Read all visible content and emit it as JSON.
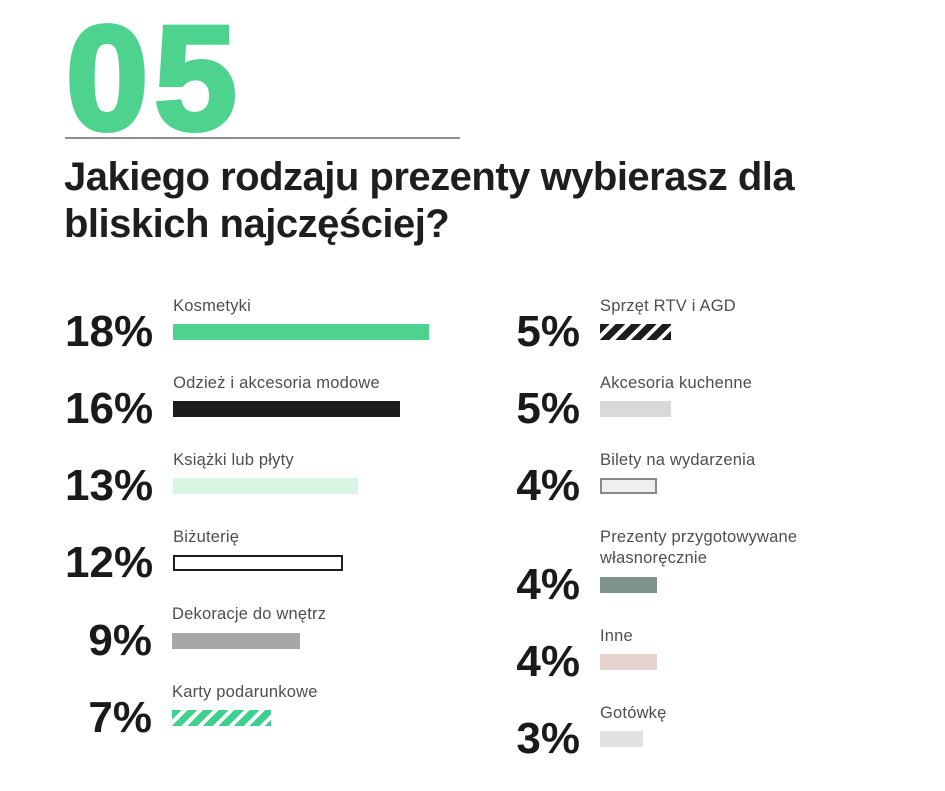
{
  "header": {
    "section_number": "05",
    "title": "Jakiego rodzaju prezenty wybierasz dla bliskich najczęściej?"
  },
  "colors": {
    "accent_green": "#4ED38F",
    "mint": "#D8F6E3",
    "ink_black": "#1D1D1B",
    "mid_gray": "#A7A7A7",
    "light_gray": "#D9D9D9",
    "pale_gray_fill": "#EFEFEF",
    "gray_border": "#8A8A8A",
    "sage_green": "#7E938E",
    "dusty_pink": "#E5D2CE",
    "fog_gray": "#E2E2E2",
    "divider_gray": "#8F8F8F",
    "text_dark": "#1E1E1E",
    "label_gray": "#4E4E4E"
  },
  "chart_data": {
    "type": "bar",
    "orientation": "horizontal",
    "unit": "%",
    "title": "Jakiego rodzaju prezenty wybierasz dla bliskich najczęściej?",
    "categories": [
      "Kosmetyki",
      "Odzież i akcesoria modowe",
      "Książki lub płyty",
      "Biżuterię",
      "Dekoracje do wnętrz",
      "Karty podarunkowe",
      "Sprzęt RTV i AGD",
      "Akcesoria kuchenne",
      "Bilety na wydarzenia",
      "Prezenty przygotowywane własnoręcznie",
      "Inne",
      "Gotówkę"
    ],
    "values": [
      18,
      16,
      13,
      12,
      9,
      7,
      5,
      5,
      4,
      4,
      4,
      3
    ],
    "legend": "none",
    "axes": "none",
    "columns": {
      "left": [
        {
          "pct_label": "18%",
          "value": 18,
          "label": "Kosmetyki",
          "bar_style": "solid",
          "bar_color": "#4ED38F"
        },
        {
          "pct_label": "16%",
          "value": 16,
          "label": "Odzież i akcesoria modowe",
          "bar_style": "solid",
          "bar_color": "#1D1D1B"
        },
        {
          "pct_label": "13%",
          "value": 13,
          "label": "Książki lub płyty",
          "bar_style": "solid",
          "bar_color": "#D8F6E3"
        },
        {
          "pct_label": "12%",
          "value": 12,
          "label": "Biżuterię",
          "bar_style": "outline",
          "bar_color": "#FFFFFF",
          "border_color": "#1D1D1B"
        },
        {
          "pct_label": "9%",
          "value": 9,
          "label": "Dekoracje do wnętrz",
          "bar_style": "solid",
          "bar_color": "#A7A7A7"
        },
        {
          "pct_label": "7%",
          "value": 7,
          "label": "Karty podarunkowe",
          "bar_style": "stripes",
          "bar_color": "#3FCF8F",
          "stripe_color": "#FFFFFF"
        }
      ],
      "right": [
        {
          "pct_label": "5%",
          "value": 5,
          "label": "Sprzęt RTV i AGD",
          "bar_style": "stripes",
          "bar_color": "#1D1D1B",
          "stripe_color": "#FFFFFF"
        },
        {
          "pct_label": "5%",
          "value": 5,
          "label": "Akcesoria kuchenne",
          "bar_style": "solid",
          "bar_color": "#D9D9D9"
        },
        {
          "pct_label": "4%",
          "value": 4,
          "label": "Bilety na wydarzenia",
          "bar_style": "outline",
          "bar_color": "#EFEFEF",
          "border_color": "#8A8A8A"
        },
        {
          "pct_label": "4%",
          "value": 4,
          "label": "Prezenty przygotowywane własnoręcznie",
          "bar_style": "solid",
          "bar_color": "#7E938E"
        },
        {
          "pct_label": "4%",
          "value": 4,
          "label": "Inne",
          "bar_style": "solid",
          "bar_color": "#E5D2CE"
        },
        {
          "pct_label": "3%",
          "value": 3,
          "label": "Gotówkę",
          "bar_style": "solid",
          "bar_color": "#E2E2E2"
        }
      ]
    }
  }
}
